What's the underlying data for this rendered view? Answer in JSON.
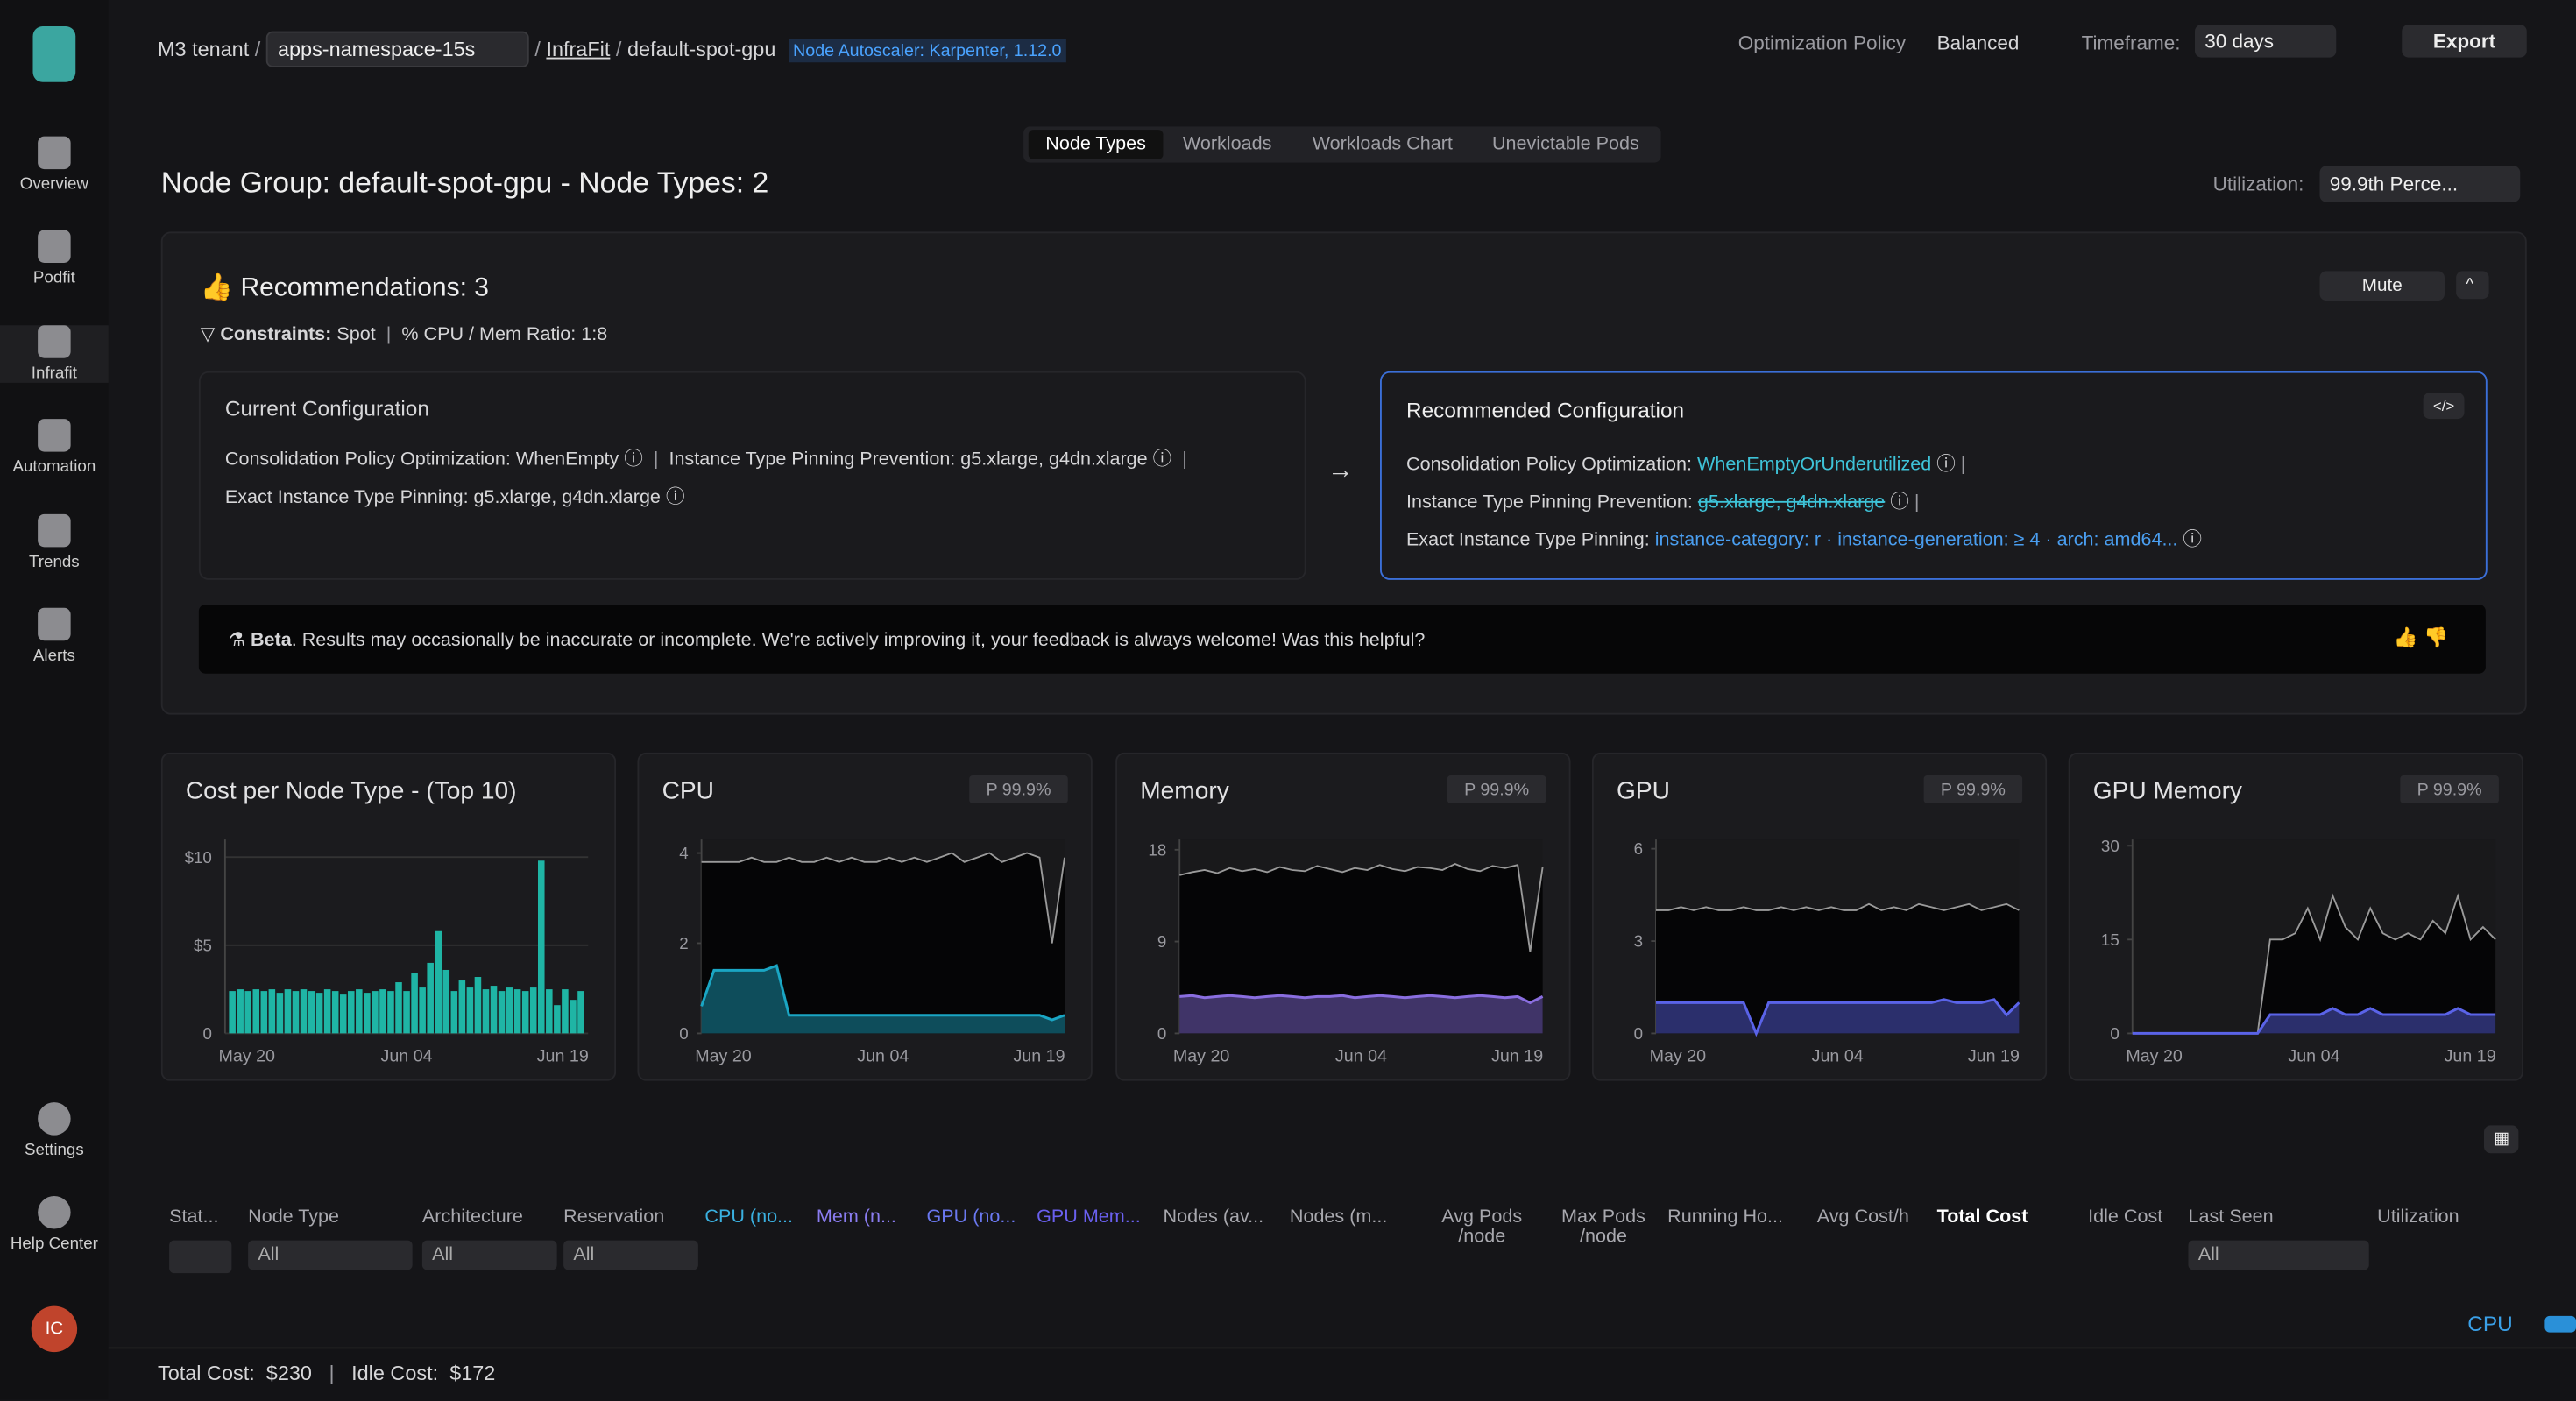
{
  "sidebar": {
    "items": [
      "Overview",
      "Podfit",
      "Infrafit",
      "Automation",
      "Trends",
      "Alerts"
    ],
    "bottom": [
      "Settings",
      "Help Center"
    ],
    "avatar": "IC"
  },
  "header": {
    "breadcrumb": [
      "M3 tenant",
      "apps-namespace-15s",
      "InfraFit",
      "default-spot-gpu"
    ],
    "badge": "Node Autoscaler: Karpenter, 1.12.0",
    "policy_label": "Optimization Policy",
    "policy": "Balanced",
    "timeframe_label": "Timeframe:",
    "timeframe": "30 days",
    "export": "Export"
  },
  "tabs": [
    "Node Types",
    "Workloads",
    "Workloads Chart",
    "Unevictable Pods"
  ],
  "title": "Node Group: default-spot-gpu - Node Types: 2",
  "utilization_label": "Utilization:",
  "utilization": "99.9th Perce...",
  "recommendations": {
    "title": "Recommendations: 3",
    "mute": "Mute",
    "constraints_label": "Constraints:",
    "constraints": "Spot",
    "ratio": "CPU / Mem Ratio: 1:8",
    "current": {
      "title": "Current Configuration",
      "items": [
        "Consolidation Policy Optimization: WhenEmpty",
        "Instance Type Pinning Prevention: g5.xlarge, g4dn.xlarge",
        "Exact Instance Type Pinning: g5.xlarge, g4dn.xlarge"
      ]
    },
    "recommended": {
      "title": "Recommended Configuration",
      "items": [
        {
          "label": "Consolidation Policy Optimization:",
          "value": "WhenEmptyOrUnderutilized"
        },
        {
          "label": "Instance Type Pinning Prevention:",
          "value": "g5.xlarge, g4dn.xlarge"
        },
        {
          "label": "Exact Instance Type Pinning:",
          "value": "instance-category: r · instance-generation: ≥ 4 · arch: amd64..."
        }
      ]
    },
    "beta_label": "Beta",
    "beta_text": ". Results may occasionally be inaccurate or incomplete. We're actively improving it, your feedback is always welcome! Was this helpful?"
  },
  "chart_data": [
    {
      "type": "bar",
      "title": "Cost per Node Type - (Top 10)",
      "color": "#1fb5a5",
      "ylim": [
        0,
        11
      ],
      "yticks": [
        0,
        {
          "value": 5,
          "label": "$5"
        },
        {
          "value": 10,
          "label": "$10"
        }
      ],
      "xticks": [
        "May 20",
        "Jun 04",
        "Jun 19"
      ],
      "grid": true,
      "values": [
        2.4,
        2.5,
        2.4,
        2.5,
        2.4,
        2.5,
        2.3,
        2.5,
        2.4,
        2.5,
        2.4,
        2.3,
        2.5,
        2.4,
        2.2,
        2.4,
        2.5,
        2.3,
        2.4,
        2.5,
        2.4,
        2.9,
        2.4,
        3.4,
        2.6,
        4.0,
        5.8,
        3.6,
        2.4,
        3.0,
        2.6,
        3.2,
        2.5,
        2.7,
        2.4,
        2.6,
        2.5,
        2.4,
        2.6,
        9.8,
        2.5,
        1.6,
        2.5,
        1.9,
        2.4
      ]
    },
    {
      "type": "line",
      "title": "CPU",
      "badge": "P 99.9%",
      "ylim": [
        0,
        4.3
      ],
      "yticks": [
        0,
        2,
        4
      ],
      "xticks": [
        "May 20",
        "Jun 04",
        "Jun 19"
      ],
      "series": [
        {
          "color": "#9a9a9a",
          "values": [
            3.8,
            3.8,
            3.8,
            3.8,
            3.9,
            3.8,
            3.8,
            3.9,
            3.8,
            3.8,
            3.9,
            3.8,
            3.9,
            3.8,
            3.8,
            3.9,
            3.8,
            3.9,
            3.8,
            3.9,
            4.0,
            3.8,
            3.9,
            4.0,
            3.8,
            3.9,
            4.0,
            3.9,
            2.0,
            3.9
          ]
        },
        {
          "color": "#1aa6c4",
          "values": [
            0.6,
            1.4,
            1.4,
            1.4,
            1.4,
            1.4,
            1.5,
            0.4,
            0.4,
            0.4,
            0.4,
            0.4,
            0.4,
            0.4,
            0.4,
            0.4,
            0.4,
            0.4,
            0.4,
            0.4,
            0.4,
            0.4,
            0.4,
            0.4,
            0.4,
            0.4,
            0.4,
            0.4,
            0.3,
            0.4
          ]
        }
      ]
    },
    {
      "type": "line",
      "title": "Memory",
      "badge": "P 99.9%",
      "ylim": [
        0,
        19
      ],
      "yticks": [
        0,
        9,
        18
      ],
      "xticks": [
        "May 20",
        "Jun 04",
        "Jun 19"
      ],
      "series": [
        {
          "color": "#9a9a9a",
          "values": [
            15.5,
            15.8,
            16.0,
            15.7,
            16.2,
            15.9,
            16.1,
            15.8,
            16.3,
            16.0,
            15.9,
            16.4,
            16.1,
            15.8,
            16.2,
            16.0,
            16.5,
            16.1,
            15.9,
            16.3,
            16.2,
            16.0,
            16.6,
            16.1,
            15.9,
            16.4,
            16.2,
            16.5,
            8.0,
            16.3
          ]
        },
        {
          "color": "#8a6ee0",
          "values": [
            3.6,
            3.7,
            3.5,
            3.6,
            3.7,
            3.6,
            3.5,
            3.6,
            3.7,
            3.6,
            3.5,
            3.6,
            3.6,
            3.7,
            3.5,
            3.6,
            3.7,
            3.6,
            3.5,
            3.6,
            3.7,
            3.6,
            3.5,
            3.6,
            3.7,
            3.6,
            3.5,
            3.6,
            3.0,
            3.6
          ]
        }
      ]
    },
    {
      "type": "line",
      "title": "GPU",
      "badge": "P 99.9%",
      "ylim": [
        0,
        6.3
      ],
      "yticks": [
        0,
        3,
        6
      ],
      "xticks": [
        "May 20",
        "Jun 04",
        "Jun 19"
      ],
      "series": [
        {
          "color": "#9a9a9a",
          "values": [
            4.0,
            4.0,
            4.1,
            4.0,
            4.1,
            4.0,
            4.0,
            4.1,
            4.0,
            4.0,
            4.1,
            4.0,
            4.1,
            4.0,
            4.1,
            4.0,
            4.0,
            4.2,
            4.0,
            4.1,
            4.0,
            4.2,
            4.1,
            4.0,
            4.1,
            4.2,
            4.0,
            4.1,
            4.2,
            4.0
          ]
        },
        {
          "color": "#5a63e8",
          "values": [
            1.0,
            1.0,
            1.0,
            1.0,
            1.0,
            1.0,
            1.0,
            1.0,
            0,
            1.0,
            1.0,
            1.0,
            1.0,
            1.0,
            1.0,
            1.0,
            1.0,
            1.0,
            1.0,
            1.0,
            1.0,
            1.0,
            1.0,
            1.1,
            1.0,
            1.0,
            1.0,
            1.1,
            0.6,
            1.0
          ]
        }
      ]
    },
    {
      "type": "line",
      "title": "GPU Memory",
      "badge": "P 99.9%",
      "ylim": [
        0,
        31
      ],
      "yticks": [
        0,
        15,
        30
      ],
      "xticks": [
        "May 20",
        "Jun 04",
        "Jun 19"
      ],
      "series": [
        {
          "color": "#9a9a9a",
          "values": [
            0,
            0,
            0,
            0,
            0,
            0,
            0,
            0,
            0,
            0,
            0,
            15,
            15,
            16,
            20,
            15,
            22,
            17,
            15,
            20,
            16,
            15,
            16,
            15,
            18,
            16,
            22,
            15,
            17,
            15
          ]
        },
        {
          "color": "#5a63e8",
          "values": [
            0,
            0,
            0,
            0,
            0,
            0,
            0,
            0,
            0,
            0,
            0,
            3,
            3,
            3,
            3,
            3,
            4,
            3,
            3,
            4,
            3,
            3,
            3,
            3,
            3,
            3,
            4,
            3,
            3,
            3
          ]
        }
      ]
    }
  ],
  "table": {
    "headers": [
      "Stat...",
      "Node Type",
      "Architecture",
      "Reservation",
      "CPU (no...",
      "Mem (n...",
      "GPU (no...",
      "GPU Mem...",
      "Nodes (av...",
      "Nodes (m...",
      "Avg Pods /node",
      "Max Pods /node",
      "Running Ho...",
      "Avg Cost/h",
      "Total Cost",
      "Idle Cost",
      "Last Seen",
      "Utilization"
    ],
    "filter": "All",
    "legend": "CPU"
  },
  "footer": {
    "total_label": "Total Cost:",
    "total": "$230",
    "idle_label": "Idle Cost:",
    "idle": "$172"
  }
}
